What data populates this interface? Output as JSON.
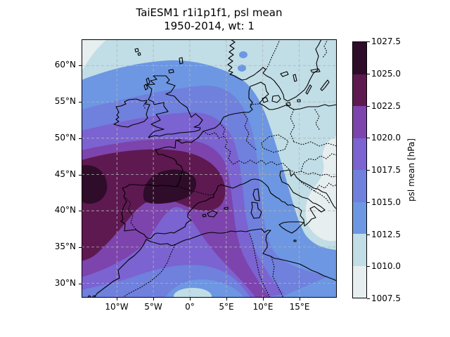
{
  "title": {
    "line1": "TaiESM1 r1i1p1f1, psl mean",
    "line2": "1950-2014, wt: 1"
  },
  "map": {
    "x_tick_labels": [
      "10°W",
      "5°W",
      "0°",
      "5°E",
      "10°E",
      "15°E"
    ],
    "y_tick_labels": [
      "60°N",
      "55°N",
      "50°N",
      "45°N",
      "40°N",
      "35°N",
      "30°N"
    ]
  },
  "colorbar": {
    "label": "psl mean [hPa]",
    "tick_labels": [
      "1027.5",
      "1025.0",
      "1022.5",
      "1020.0",
      "1017.5",
      "1015.0",
      "1012.5",
      "1010.0",
      "1007.5"
    ],
    "band_colors_high_to_low": [
      "#2f0c29",
      "#5e1951",
      "#7d44ad",
      "#7b63d1",
      "#7080dd",
      "#6d97e2",
      "#c1dde6",
      "#e7eef0"
    ]
  },
  "chart_data": {
    "type": "filled_contour_map",
    "title": "TaiESM1 r1i1p1f1, psl mean 1950-2014, wt: 1",
    "variable": "psl mean",
    "units": "hPa",
    "colorbar_label": "psl mean [hPa]",
    "contour_levels_hpa": [
      1007.5,
      1010.0,
      1012.5,
      1015.0,
      1017.5,
      1020.0,
      1022.5,
      1025.0,
      1027.5
    ],
    "lon_range_deg": [
      -14.9,
      20.2
    ],
    "lat_range_deg": [
      26.6,
      63.6
    ],
    "grid_spacing_deg": 5,
    "gridlines": "dashed grey every 5 degrees, coastlines solid black, country borders dotted black",
    "field_summary": [
      {
        "region": "Atlantic west of Iberia and Bay of Biscay (12W-0E, 40-47N)",
        "psl_hpa": "1025-1027.5 (maximum)"
      },
      {
        "region": "Iberia, France, western Mediterranean",
        "psl_hpa": "1017.5-1025"
      },
      {
        "region": "British Isles and central Europe",
        "psl_hpa": "1012.5-1022.5 decreasing toward northeast"
      },
      {
        "region": "Scandinavia, Baltic and northeastern Europe",
        "psl_hpa": "1010-1012.5"
      },
      {
        "region": "far northwest corner of domain",
        "psl_hpa": "1007.5-1010"
      },
      {
        "region": "Adriatic and Ionian seas (16-20E, 36-44N)",
        "psl_hpa": "1007.5-1010 (local minimum)"
      },
      {
        "region": "south edge near 0E, 27N",
        "psl_hpa": "1010-1012.5 (local minimum)"
      }
    ]
  }
}
